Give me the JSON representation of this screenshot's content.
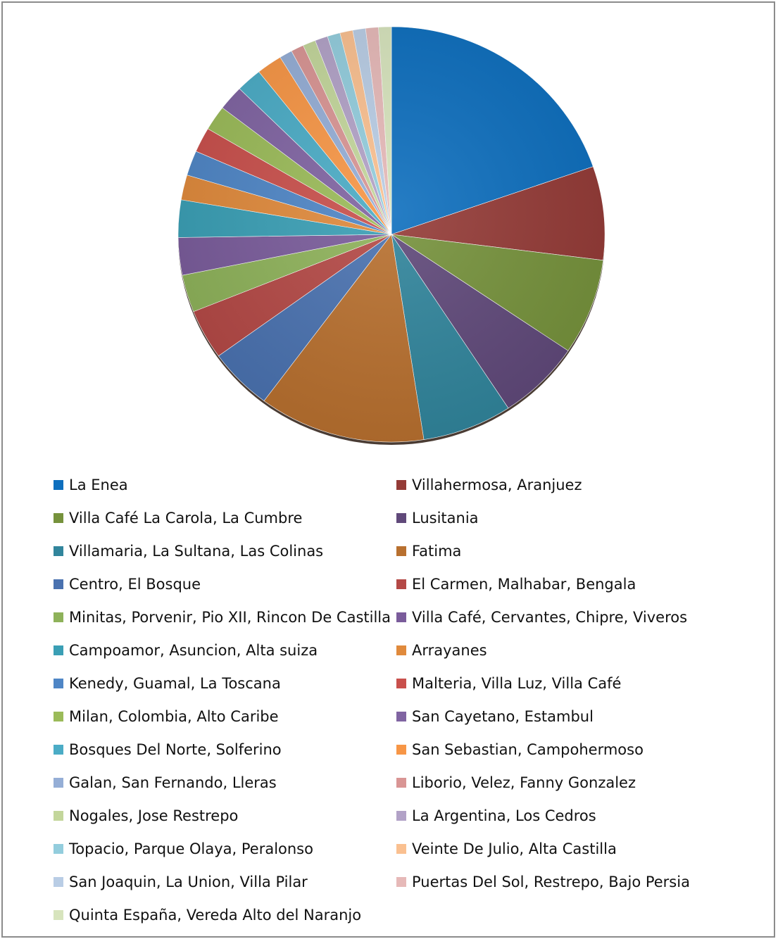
{
  "chart_data": {
    "type": "pie",
    "title": "",
    "legend_position": "bottom",
    "slices": [
      {
        "label": "La Enea",
        "value": 20.3,
        "color": "#0E6FBE"
      },
      {
        "label": "Villahermosa, Aranjuez",
        "value": 7.5,
        "color": "#943B37"
      },
      {
        "label": "Villa Café La Carola, La Cumbre",
        "value": 7.7,
        "color": "#76923C"
      },
      {
        "label": "Lusitania",
        "value": 6.5,
        "color": "#60497A"
      },
      {
        "label": "Villamaria, La Sultana, Las Colinas",
        "value": 7.0,
        "color": "#31859C"
      },
      {
        "label": "Fatima",
        "value": 13.0,
        "color": "#B8702F"
      },
      {
        "label": "Centro, El Bosque",
        "value": 5.0,
        "color": "#4A72B0"
      },
      {
        "label": "El Carmen, Malhabar, Bengala",
        "value": 4.0,
        "color": "#B44946"
      },
      {
        "label": "Minitas, Porvenir, Pio XII, Rincon De Castilla",
        "value": 3.0,
        "color": "#8EB25A"
      },
      {
        "label": "Villa Café, Cervantes, Chipre, Viveros",
        "value": 3.0,
        "color": "#7A5C9B"
      },
      {
        "label": "Campoamor, Asuncion, Alta suiza",
        "value": 3.0,
        "color": "#3A9FB5"
      },
      {
        "label": "Arrayanes",
        "value": 2.0,
        "color": "#E08A3C"
      },
      {
        "label": "Kenedy, Guamal, La Toscana",
        "value": 2.0,
        "color": "#4F86C6"
      },
      {
        "label": "Malteria, Villa Luz, Villa Café",
        "value": 2.0,
        "color": "#C9504C"
      },
      {
        "label": "Milan, Colombia, Alto Caribe",
        "value": 2.0,
        "color": "#9BBB59"
      },
      {
        "label": "San Cayetano, Estambul",
        "value": 2.0,
        "color": "#8064A2"
      },
      {
        "label": "Bosques Del Norte, Solferino",
        "value": 2.0,
        "color": "#4BACC6"
      },
      {
        "label": "San Sebastian, Campohermoso",
        "value": 2.0,
        "color": "#F79646"
      },
      {
        "label": "Galan, San Fernando, Lleras",
        "value": 1.0,
        "color": "#95AED6"
      },
      {
        "label": "Liborio, Velez, Fanny Gonzalez",
        "value": 1.0,
        "color": "#D99594"
      },
      {
        "label": "Nogales, Jose Restrepo",
        "value": 1.0,
        "color": "#C3D69B"
      },
      {
        "label": "La Argentina, Los Cedros",
        "value": 1.0,
        "color": "#B2A2C7"
      },
      {
        "label": "Topacio, Parque Olaya, Peralonso",
        "value": 1.0,
        "color": "#93CDDD"
      },
      {
        "label": "Veinte De Julio, Alta Castilla",
        "value": 1.0,
        "color": "#FAC090"
      },
      {
        "label": "San Joaquin, La Union, Villa Pilar",
        "value": 1.0,
        "color": "#B9CDE5"
      },
      {
        "label": "Puertas Del Sol, Restrepo, Bajo Persia",
        "value": 1.0,
        "color": "#E6B9B8"
      },
      {
        "label": "Quinta España, Vereda Alto del Naranjo",
        "value": 1.0,
        "color": "#D7E4BD"
      }
    ]
  }
}
